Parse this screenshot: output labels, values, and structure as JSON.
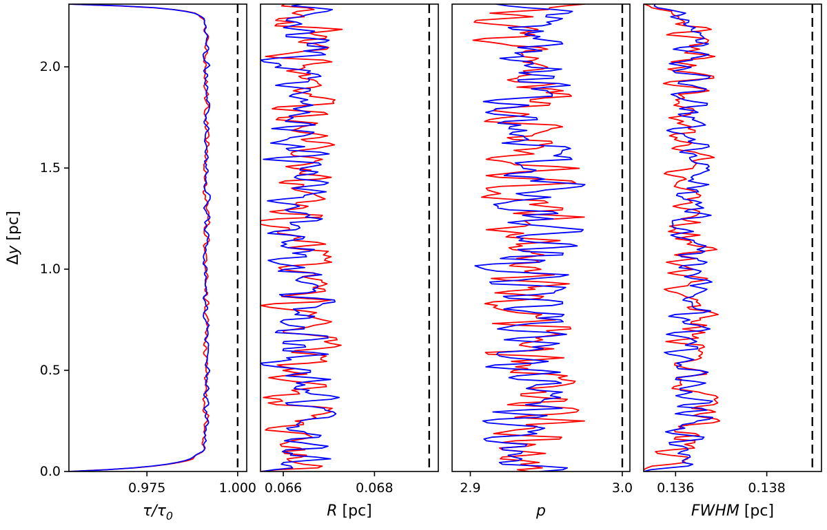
{
  "chart_data": {
    "type": "line",
    "title": "",
    "description": "Four vertical-profile panels sharing a common y axis; red and blue noisy profiles with a black dashed reference line in each panel",
    "ylabel": "Δy [pc]",
    "ylabel_segments": [
      {
        "text": "Δ",
        "italic": false
      },
      {
        "text": "y",
        "italic": true
      },
      {
        "text": " [pc]",
        "italic": false
      }
    ],
    "ylim": [
      0,
      2.31
    ],
    "yticks": [
      {
        "value": 0.0,
        "label": "0.0"
      },
      {
        "value": 0.5,
        "label": "0.5"
      },
      {
        "value": 1.0,
        "label": "1.0"
      },
      {
        "value": 1.5,
        "label": "1.5"
      },
      {
        "value": 2.0,
        "label": "2.0"
      }
    ],
    "grid": false,
    "legend_position": "none",
    "n_points": 260,
    "line_width": 1.8,
    "series_colors": {
      "red": "#ff0000",
      "blue": "#0000ff"
    },
    "axis_color": "#000000",
    "background": "#ffffff",
    "dashed_line_style": {
      "color": "#000000",
      "dash": [
        13,
        7
      ],
      "width": 2.4
    },
    "panels": [
      {
        "id": "tau",
        "xlabel_plain": "τ/τ0",
        "xlabel_segments": [
          {
            "text": "τ/τ",
            "italic": true
          },
          {
            "text": "0",
            "italic": true,
            "subscript": true
          }
        ],
        "xlim": [
          0.9535,
          1.0025
        ],
        "xticks": [
          {
            "value": 0.975,
            "label": "0.975"
          },
          {
            "value": 1.0,
            "label": "1.000"
          }
        ],
        "dashed_x": 1.0,
        "series": [
          {
            "name": "red",
            "seed": 101,
            "baseline": 0.9913,
            "noise_amp": 0.0006,
            "edge_dip_bottom": {
              "amplitude": 0.0378,
              "scale": 0.028
            },
            "edge_dip_top": {
              "amplitude": 0.0378,
              "scale": 0.018
            }
          },
          {
            "name": "blue",
            "seed": 202,
            "baseline": 0.9913,
            "noise_amp": 0.0006,
            "edge_dip_bottom": {
              "amplitude": 0.0378,
              "scale": 0.028
            },
            "edge_dip_top": {
              "amplitude": 0.0378,
              "scale": 0.018
            }
          }
        ]
      },
      {
        "id": "R",
        "xlabel_plain": "R [pc]",
        "xlabel_segments": [
          {
            "text": "R",
            "italic": true
          },
          {
            "text": " [pc]",
            "italic": false
          }
        ],
        "xlim": [
          0.0655,
          0.0694
        ],
        "xticks": [
          {
            "value": 0.066,
            "label": "0.066"
          },
          {
            "value": 0.068,
            "label": "0.068"
          }
        ],
        "dashed_x": 0.0692,
        "series": [
          {
            "name": "red",
            "seed": 7,
            "baseline": 0.06636,
            "noise_amp": 0.00055
          },
          {
            "name": "blue",
            "seed": 23,
            "baseline": 0.06639,
            "noise_amp": 0.00052
          }
        ]
      },
      {
        "id": "p",
        "xlabel_plain": "p",
        "xlabel_segments": [
          {
            "text": "p",
            "italic": true
          }
        ],
        "xlim": [
          2.888,
          3.005
        ],
        "xticks": [
          {
            "value": 2.9,
            "label": "2.9"
          },
          {
            "value": 3.0,
            "label": "3.0"
          }
        ],
        "dashed_x": 3.0,
        "series": [
          {
            "name": "red",
            "seed": 91,
            "baseline": 2.938,
            "noise_amp": 0.023
          },
          {
            "name": "blue",
            "seed": 55,
            "baseline": 2.941,
            "noise_amp": 0.022
          }
        ]
      },
      {
        "id": "FWHM",
        "xlabel_plain": "FWHM [pc]",
        "xlabel_segments": [
          {
            "text": "FWHM",
            "italic": true
          },
          {
            "text": " [pc]",
            "italic": false
          }
        ],
        "xlim": [
          0.1353,
          0.1392
        ],
        "xticks": [
          {
            "value": 0.136,
            "label": "0.136"
          },
          {
            "value": 0.138,
            "label": "0.138"
          }
        ],
        "dashed_x": 0.139,
        "series": [
          {
            "name": "red",
            "seed": 63,
            "baseline": 0.13636,
            "noise_amp": 0.00038,
            "edge_dip_bottom": {
              "amplitude": 0.0007,
              "scale": 0.05
            },
            "edge_dip_top": {
              "amplitude": 0.0009,
              "scale": 0.04
            }
          },
          {
            "name": "blue",
            "seed": 19,
            "baseline": 0.13634,
            "noise_amp": 0.00036,
            "edge_dip_bottom": {
              "amplitude": 0.0007,
              "scale": 0.05
            },
            "edge_dip_top": {
              "amplitude": 0.0009,
              "scale": 0.04
            }
          }
        ]
      }
    ]
  }
}
